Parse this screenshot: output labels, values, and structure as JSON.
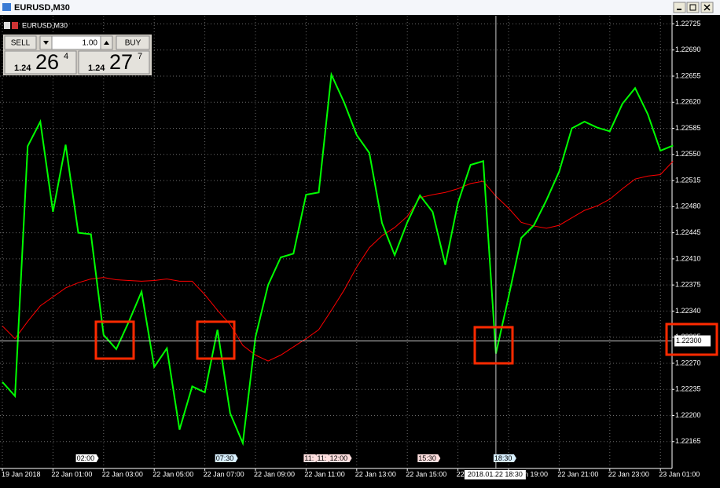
{
  "window": {
    "title": "EURUSD,M30"
  },
  "chart_data": {
    "type": "line",
    "title": "EURUSD,M30",
    "categories": [
      "19 Jan 2018",
      null,
      null,
      null,
      "22 Jan 01:00",
      null,
      null,
      null,
      "22 Jan 03:00",
      null,
      null,
      null,
      "22 Jan 05:00",
      null,
      null,
      null,
      "22 Jan 07:00",
      null,
      null,
      null,
      "22 Jan 09:00",
      null,
      null,
      null,
      "22 Jan 11:00",
      null,
      null,
      null,
      "22 Jan 13:00",
      null,
      null,
      null,
      "22 Jan 15:00",
      null,
      null,
      null,
      "22 Jan 17:00",
      null,
      null,
      null,
      "22 Jan 19:00",
      null,
      null,
      null,
      "22 Jan 21:00",
      null,
      null,
      null,
      "22 Jan 23:00",
      null,
      null,
      null,
      "23 Jan 01:00",
      null
    ],
    "series": [
      {
        "color": "#00ff00",
        "values": [
          1.22245,
          1.22226,
          1.22561,
          1.22594,
          1.22473,
          1.22563,
          1.22445,
          1.22443,
          1.22308,
          1.22289,
          1.22326,
          1.22366,
          1.22265,
          1.2229,
          1.22181,
          1.22239,
          1.22231,
          1.22315,
          1.22203,
          1.22163,
          1.22305,
          1.22375,
          1.22412,
          1.22417,
          1.22496,
          1.22499,
          1.22657,
          1.2262,
          1.22576,
          1.22552,
          1.22458,
          1.22415,
          1.22459,
          1.22495,
          1.22473,
          1.22402,
          1.22485,
          1.22536,
          1.22541,
          1.22283,
          1.22359,
          1.22438,
          1.22455,
          1.22489,
          1.22527,
          1.22585,
          1.22594,
          1.22586,
          1.22581,
          1.22618,
          1.22639,
          1.22604,
          1.22555,
          1.22562
        ]
      },
      {
        "color": "#ff0000",
        "values": [
          1.2232,
          1.22303,
          1.22326,
          1.22347,
          1.22359,
          1.22371,
          1.22378,
          1.22383,
          1.22385,
          1.22382,
          1.22381,
          1.2238,
          1.22381,
          1.22383,
          1.2238,
          1.2238,
          1.22362,
          1.22341,
          1.22322,
          1.22294,
          1.22281,
          1.22273,
          1.22281,
          1.22292,
          1.22303,
          1.22315,
          1.22341,
          1.22368,
          1.22399,
          1.22425,
          1.22441,
          1.22452,
          1.22467,
          1.22492,
          1.22496,
          1.22499,
          1.22504,
          1.22511,
          1.22514,
          1.22494,
          1.22478,
          1.22459,
          1.22454,
          1.22451,
          1.22455,
          1.22465,
          1.22475,
          1.22481,
          1.2249,
          1.22504,
          1.22517,
          1.22521,
          1.22523,
          1.22541
        ]
      }
    ],
    "ylim": [
      1.22129,
      1.22736
    ],
    "yticks": [
      1.22725,
      {
        "value": 1.2269,
        "label": "1.22690"
      },
      1.22655,
      {
        "value": 1.2262,
        "label": "1.22620"
      },
      1.22585,
      {
        "value": 1.2255,
        "label": "1.22550"
      },
      1.22515,
      {
        "value": 1.2248,
        "label": "1.22480"
      },
      1.22445,
      {
        "value": 1.2241,
        "label": "1.22410"
      },
      1.22375,
      {
        "value": 1.2234,
        "label": "1.22340"
      },
      1.22305,
      {
        "value": 1.2227,
        "label": "1.22270"
      },
      1.22235,
      {
        "value": 1.222,
        "label": "1.22200"
      },
      1.22165
    ],
    "grid": true,
    "current_price": {
      "value": 1.223,
      "label": "1.22300"
    },
    "crosshair_time": "2018.01.22 18:30",
    "event_markers": [
      "02:00",
      "07:30",
      "11:",
      "11:",
      "12:00",
      "15:30",
      "18:30"
    ]
  },
  "trade_panel": {
    "sell": "SELL",
    "lot": "1.00",
    "buy": "BUY",
    "bid": {
      "prefix": "1.24",
      "big": "26",
      "small": "4"
    },
    "ask": {
      "prefix": "1.24",
      "big": "27",
      "small": "7"
    }
  }
}
